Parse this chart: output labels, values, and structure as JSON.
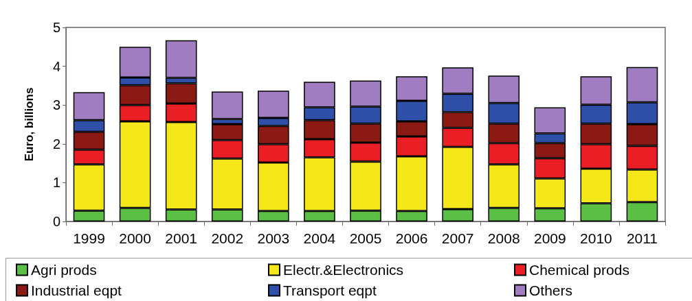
{
  "chart_data": {
    "type": "bar",
    "stacked": true,
    "ylabel": "Euro, billions",
    "categories": [
      "1999",
      "2000",
      "2001",
      "2002",
      "2003",
      "2004",
      "2005",
      "2006",
      "2007",
      "2008",
      "2009",
      "2010",
      "2011"
    ],
    "ylim": [
      0,
      5
    ],
    "yticks": [
      0,
      1,
      2,
      3,
      4,
      5
    ],
    "legend": "bottom",
    "grid": false,
    "series": [
      {
        "name": "Agri prods",
        "color": "#5cbf45",
        "values": [
          0.28,
          0.35,
          0.31,
          0.31,
          0.27,
          0.27,
          0.28,
          0.27,
          0.32,
          0.35,
          0.34,
          0.47,
          0.5
        ]
      },
      {
        "name": "Electr.&Electronics",
        "color": "#f5e81a",
        "values": [
          1.19,
          2.23,
          2.25,
          1.31,
          1.25,
          1.38,
          1.26,
          1.41,
          1.6,
          1.12,
          0.77,
          0.89,
          0.84
        ]
      },
      {
        "name": "Chemical prods",
        "color": "#ea1f25",
        "values": [
          0.38,
          0.42,
          0.48,
          0.48,
          0.47,
          0.47,
          0.49,
          0.51,
          0.49,
          0.55,
          0.52,
          0.63,
          0.61
        ]
      },
      {
        "name": "Industrial eqpt",
        "color": "#8b1a14",
        "values": [
          0.46,
          0.51,
          0.52,
          0.41,
          0.47,
          0.49,
          0.49,
          0.39,
          0.41,
          0.5,
          0.39,
          0.53,
          0.56
        ]
      },
      {
        "name": "Transport eqpt",
        "color": "#2f4fa8",
        "values": [
          0.3,
          0.2,
          0.14,
          0.13,
          0.21,
          0.33,
          0.44,
          0.53,
          0.47,
          0.53,
          0.25,
          0.49,
          0.56
        ]
      },
      {
        "name": "Others",
        "color": "#a07cc0",
        "values": [
          0.72,
          0.79,
          0.97,
          0.71,
          0.7,
          0.66,
          0.67,
          0.63,
          0.68,
          0.71,
          0.67,
          0.73,
          0.91
        ]
      }
    ]
  }
}
